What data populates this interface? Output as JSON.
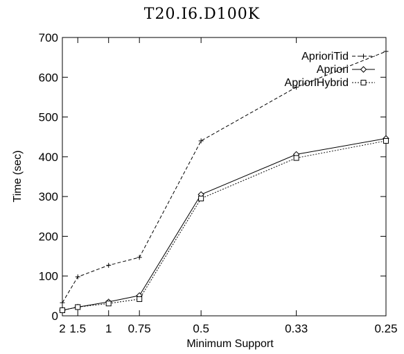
{
  "chart_data": {
    "type": "line",
    "title": "T20.I6.D100K",
    "xlabel": "Minimum Support",
    "ylabel": "Time (sec)",
    "categories": [
      "2",
      "1.5",
      "1",
      "0.75",
      "0.5",
      "0.33",
      "0.25"
    ],
    "x": [
      2,
      1.5,
      1,
      0.75,
      0.5,
      0.33,
      0.25
    ],
    "x_scale": "reciprocal (1/support)",
    "ylim": [
      0,
      700
    ],
    "yticks": [
      "0",
      "100",
      "200",
      "300",
      "400",
      "500",
      "600",
      "700"
    ],
    "grid": false,
    "legend": "top-right",
    "series": [
      {
        "name": "AprioriTid",
        "marker": "plus",
        "line": "dashed",
        "color": "#000000",
        "values": [
          33,
          98,
          127,
          147,
          440,
          575,
          665
        ]
      },
      {
        "name": "Apriori",
        "marker": "diamond",
        "line": "solid",
        "color": "#000000",
        "values": [
          14,
          22,
          35,
          51,
          305,
          406,
          446
        ]
      },
      {
        "name": "AprioriHybrid",
        "marker": "square",
        "line": "dotted",
        "color": "#000000",
        "values": [
          14,
          22,
          31,
          42,
          295,
          397,
          440
        ]
      }
    ]
  }
}
